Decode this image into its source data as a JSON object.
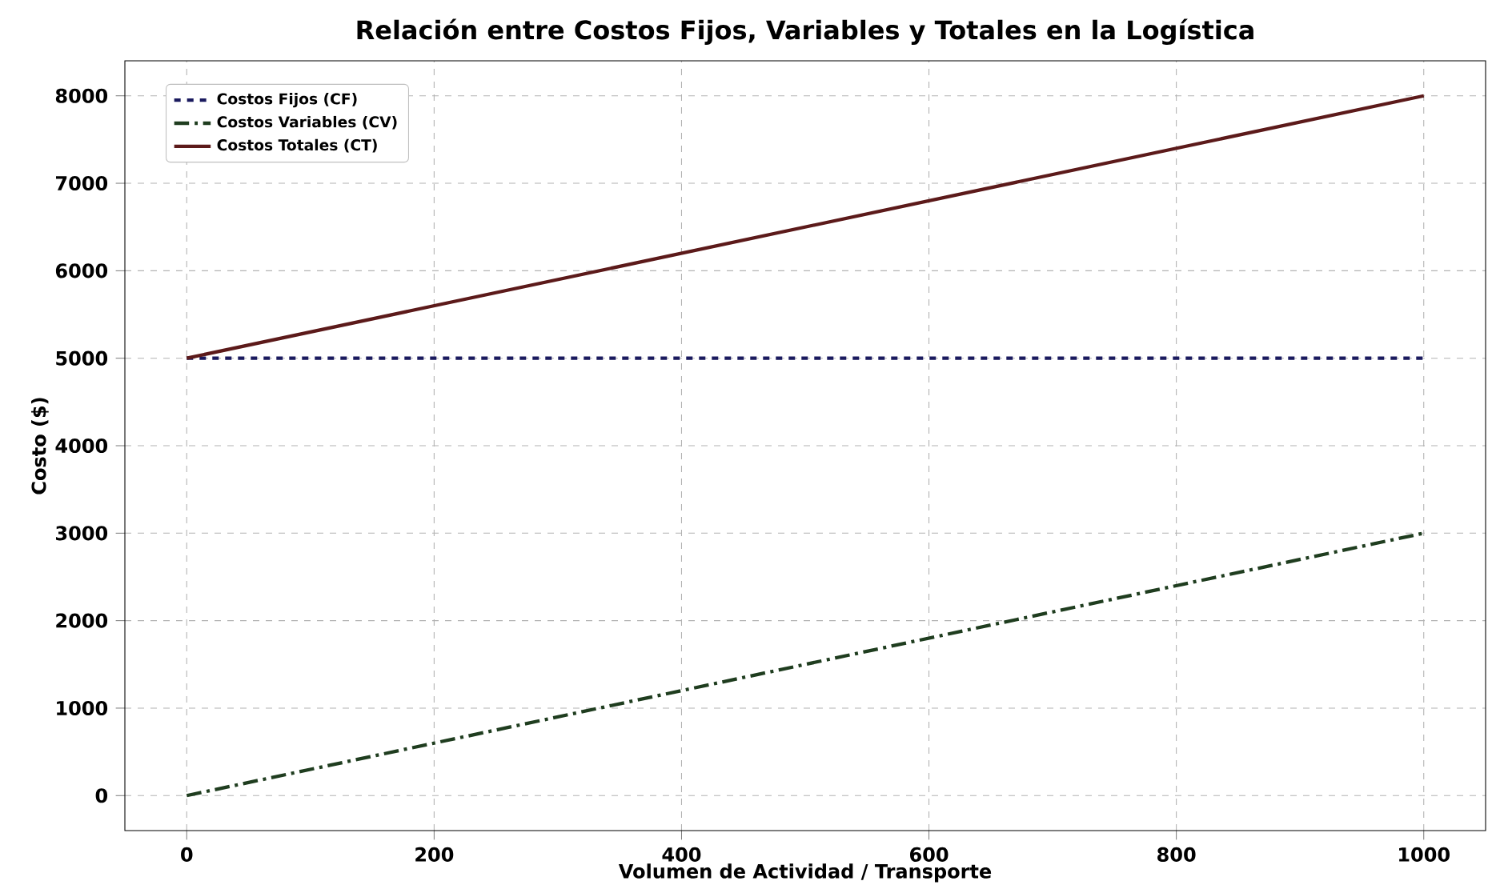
{
  "chart_data": {
    "type": "line",
    "title": "Relación entre Costos Fijos, Variables y Totales en la Logística",
    "xlabel": "Volumen de Actividad / Transporte",
    "ylabel": "Costo ($)",
    "series": [
      {
        "name": "Costos Fijos (CF)",
        "color": "#1a1a5e",
        "line_style": "dashed",
        "values": [
          5000,
          5000
        ]
      },
      {
        "name": "Costos Variables (CV)",
        "color": "#1f3d1f",
        "line_style": "dashdot",
        "values": [
          0,
          3000
        ]
      },
      {
        "name": "Costos Totales (CT)",
        "color": "#5c1a1a",
        "line_style": "solid",
        "values": [
          5000,
          8000
        ]
      }
    ],
    "x": [
      0,
      1000
    ],
    "xlim": [
      -50,
      1050
    ],
    "ylim": [
      -400,
      8400
    ],
    "xticks": [
      0,
      200,
      400,
      600,
      800,
      1000
    ],
    "yticks": [
      0,
      1000,
      2000,
      3000,
      4000,
      5000,
      6000,
      7000,
      8000
    ],
    "grid": true,
    "legend": "top left",
    "marker": "none"
  }
}
